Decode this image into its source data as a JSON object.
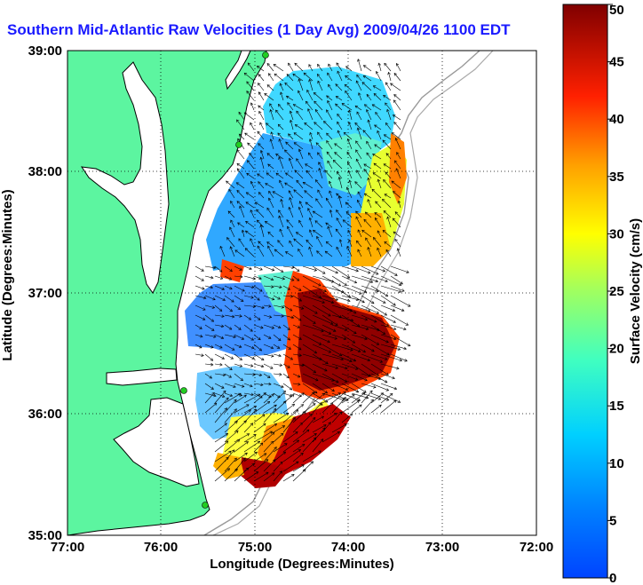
{
  "title": "Southern Mid-Atlantic Raw Velocities (1 Day Avg) 2009/04/26 1100 EDT",
  "map": {
    "xlabel": "Longitude (Degrees:Minutes)",
    "ylabel": "Latitude (Degrees:Minutes)",
    "lon_ticks": [
      "77:00",
      "76:00",
      "75:00",
      "74:00",
      "73:00",
      "72:00"
    ],
    "lat_ticks": [
      "39:00",
      "38:00",
      "37:00",
      "36:00",
      "35:00"
    ],
    "lon_range": [
      -77,
      -72
    ],
    "lat_range": [
      35,
      39
    ],
    "grid": "dotted",
    "land_color": "#5cf5a0",
    "ocean_color": "#ffffff"
  },
  "colorbar": {
    "label": "Surface Velocity (cm/s)",
    "ticks": [
      "0",
      "5",
      "10",
      "15",
      "20",
      "25",
      "30",
      "35",
      "40",
      "45",
      "50"
    ],
    "range": [
      0,
      50
    ],
    "colormap": "jet"
  },
  "colors": {
    "title": "#1a1aff",
    "vector": "#000000",
    "station": "#22cc22"
  }
}
